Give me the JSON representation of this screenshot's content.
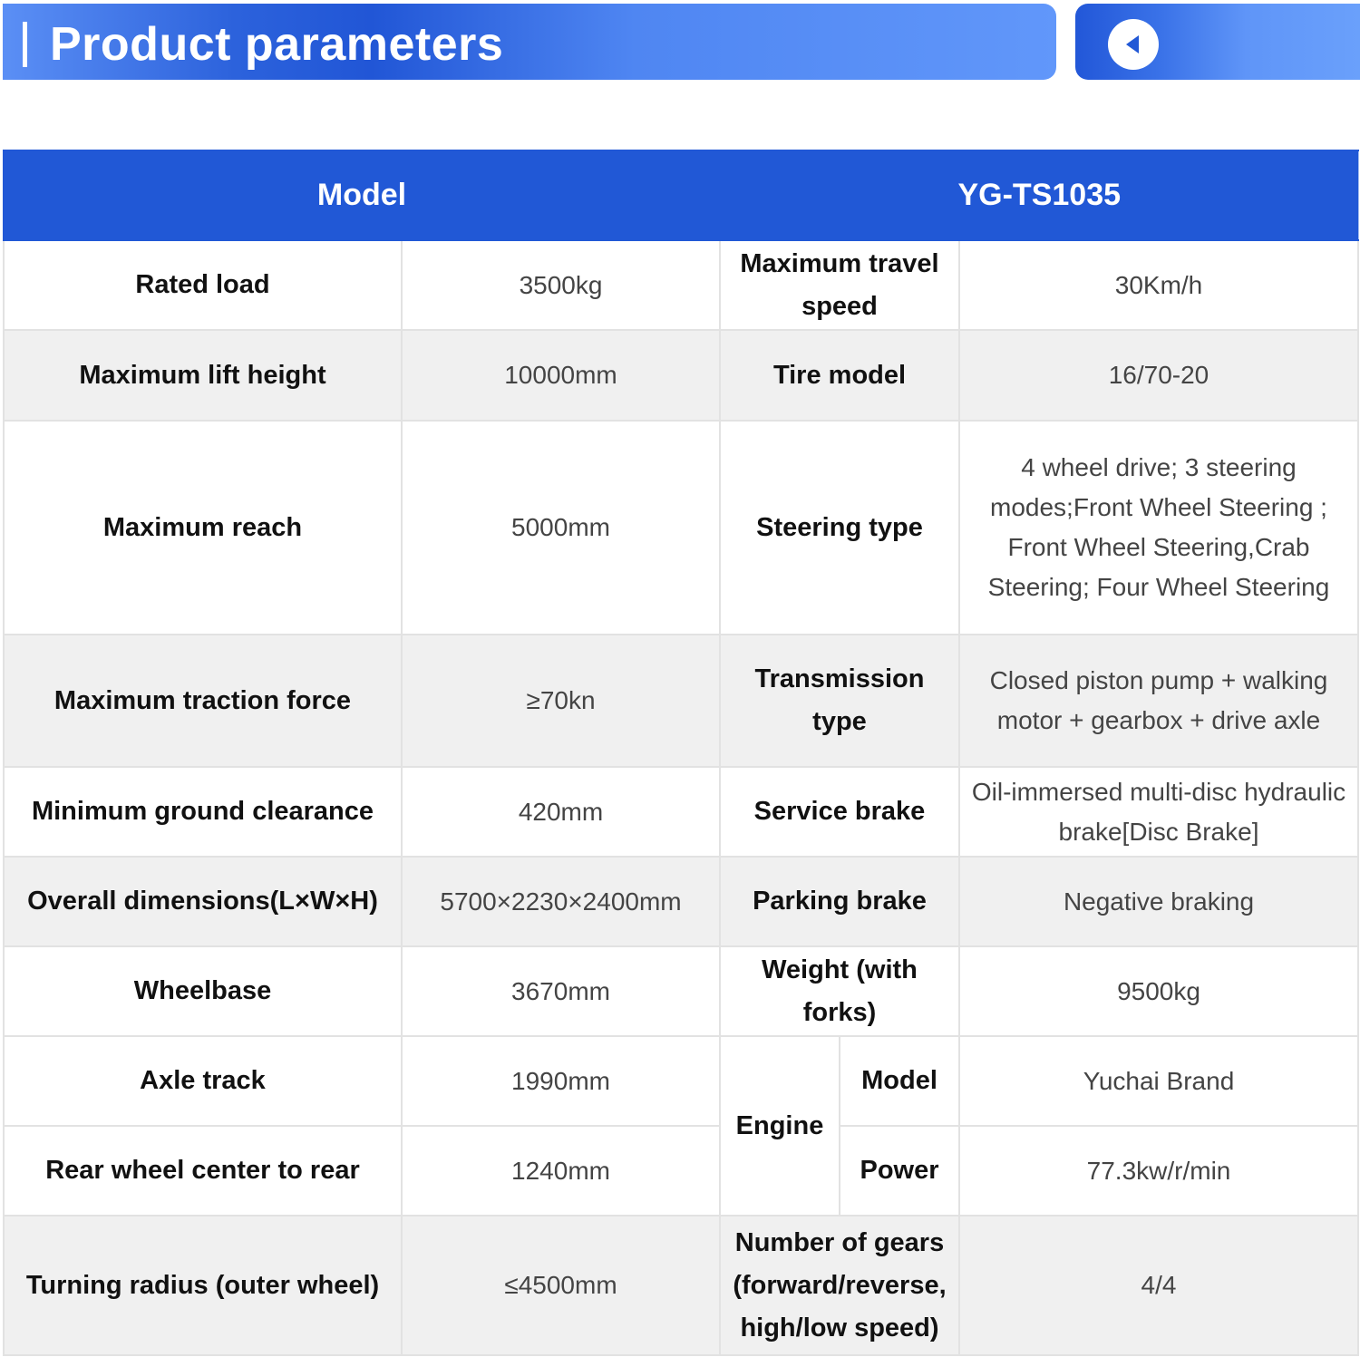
{
  "banner": {
    "title": "Product parameters",
    "nav_icon": "play-left-icon"
  },
  "colors": {
    "accent": "#2158d6",
    "row_alt": "#f0f0f0"
  },
  "table": {
    "header": {
      "left": "Model",
      "right": "YG-TS1035"
    },
    "rows": [
      {
        "k1": "Rated load",
        "v1": "3500kg",
        "k2": "Maximum travel speed",
        "v2": "30Km/h"
      },
      {
        "k1": "Maximum lift height",
        "v1": "10000mm",
        "k2": "Tire model",
        "v2": "16/70-20"
      },
      {
        "k1": "Maximum reach",
        "v1": "5000mm",
        "k2": "Steering type",
        "v2": "4 wheel drive; 3 steering modes;Front Wheel Steering ; Front Wheel Steering,Crab Steering; Four Wheel Steering"
      },
      {
        "k1": "Maximum traction force",
        "v1": "≥70kn",
        "k2": "Transmission type",
        "v2": "Closed piston pump + walking motor + gearbox + drive axle"
      },
      {
        "k1": "Minimum ground clearance",
        "v1": "420mm",
        "k2": "Service brake",
        "v2": "Oil-immersed multi-disc hydraulic brake[Disc Brake]"
      },
      {
        "k1": "Overall dimensions(L×W×H)",
        "v1": "5700×2230×2400mm",
        "k2": "Parking brake",
        "v2": "Negative braking"
      },
      {
        "k1": "Wheelbase",
        "v1": "3670mm",
        "k2": "Weight (with forks)",
        "v2": "9500kg"
      },
      {
        "k1": "Axle track",
        "v1": "1990mm",
        "group": "Engine",
        "k2": "Model",
        "v2": "Yuchai Brand"
      },
      {
        "k1": "Rear wheel center to rear",
        "v1": "1240mm",
        "k2": "Power",
        "v2": "77.3kw/r/min"
      },
      {
        "k1": "Turning radius (outer wheel)",
        "v1": "≤4500mm",
        "k2": "Number of gears (forward/reverse, high/low speed)",
        "v2": "4/4"
      }
    ]
  }
}
